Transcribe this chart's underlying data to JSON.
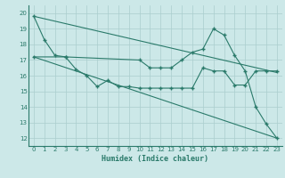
{
  "xlabel": "Humidex (Indice chaleur)",
  "background_color": "#cce8e8",
  "grid_color": "#aacece",
  "line_color": "#2a7a6a",
  "xlim": [
    -0.5,
    23.5
  ],
  "ylim": [
    11.5,
    20.5
  ],
  "yticks": [
    12,
    13,
    14,
    15,
    16,
    17,
    18,
    19,
    20
  ],
  "xticks": [
    0,
    1,
    2,
    3,
    4,
    5,
    6,
    7,
    8,
    9,
    10,
    11,
    12,
    13,
    14,
    15,
    16,
    17,
    18,
    19,
    20,
    21,
    22,
    23
  ],
  "line1_x": [
    0,
    1,
    2,
    3,
    10,
    11,
    12,
    13,
    14,
    15,
    16,
    17,
    18,
    19,
    20,
    21,
    22,
    23
  ],
  "line1_y": [
    19.8,
    18.3,
    17.3,
    17.2,
    17.0,
    16.5,
    16.5,
    16.5,
    17.0,
    17.5,
    17.7,
    19.0,
    18.6,
    17.3,
    16.3,
    14.0,
    12.9,
    12.0
  ],
  "line2_x": [
    0,
    3,
    4,
    5,
    6,
    7,
    8,
    9,
    10,
    11,
    12,
    13,
    14,
    15,
    16,
    17,
    18,
    19,
    20,
    21,
    22,
    23
  ],
  "line2_y": [
    17.2,
    17.2,
    16.4,
    16.0,
    15.3,
    15.7,
    15.3,
    15.3,
    15.2,
    15.2,
    15.2,
    15.2,
    15.2,
    15.2,
    16.5,
    16.3,
    16.3,
    15.4,
    15.4,
    16.3,
    16.3,
    16.3
  ],
  "line3_x": [
    0,
    23
  ],
  "line3_y": [
    19.8,
    16.2
  ],
  "line4_x": [
    0,
    23
  ],
  "line4_y": [
    17.2,
    12.0
  ]
}
